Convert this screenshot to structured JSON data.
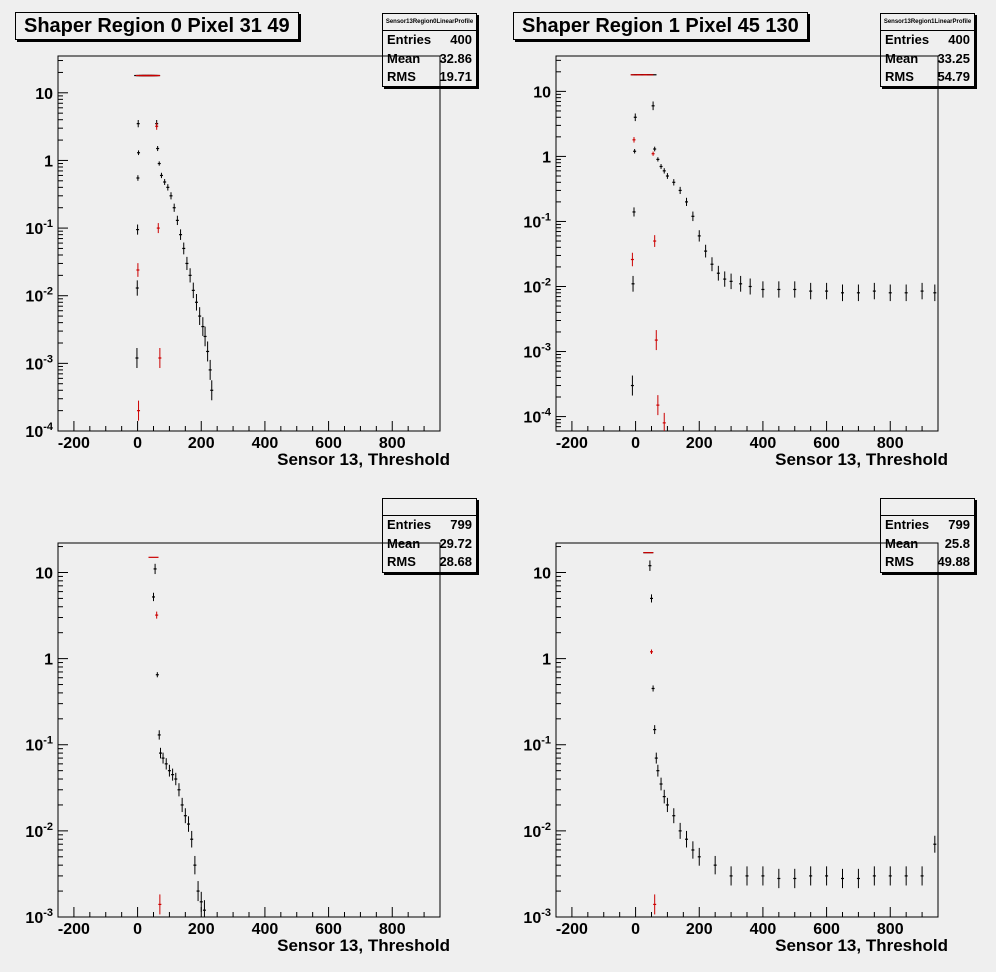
{
  "panels": [
    {
      "title": "Shaper Region 0 Pixel 31 49",
      "stats_name": "Sensor13Region0LinearProfile",
      "entries_label": "Entries",
      "entries": "400",
      "mean_label": "Mean",
      "mean": "32.86",
      "rms_label": "RMS",
      "rms": "19.71",
      "xlabel": "Sensor 13, Threshold"
    },
    {
      "title": "Shaper Region 1 Pixel 45 130",
      "stats_name": "Sensor13Region1LinearProfile",
      "entries_label": "Entries",
      "entries": "400",
      "mean_label": "Mean",
      "mean": "33.25",
      "rms_label": "RMS",
      "rms": "54.79",
      "xlabel": "Sensor 13, Threshold"
    },
    {
      "title": "",
      "stats_name": "",
      "entries_label": "Entries",
      "entries": "799",
      "mean_label": "Mean",
      "mean": "29.72",
      "rms_label": "RMS",
      "rms": "28.68",
      "xlabel": "Sensor 13, Threshold"
    },
    {
      "title": "",
      "stats_name": "",
      "entries_label": "Entries",
      "entries": "799",
      "mean_label": "Mean",
      "mean": "25.8",
      "rms_label": "RMS",
      "rms": "49.88",
      "xlabel": "Sensor 13, Threshold"
    }
  ],
  "chart_data": [
    {
      "type": "scatter",
      "title": "Shaper Region 0 Pixel 31 49",
      "xlabel": "Sensor 13, Threshold",
      "ylabel": "",
      "xlim": [
        -250,
        950
      ],
      "ylim": [
        0.0001,
        35
      ],
      "yscale": "log",
      "x_ticks": [
        "-200",
        "0",
        "200",
        "400",
        "600",
        "800"
      ],
      "y_ticks": [
        "10^-4",
        "10^-3",
        "10^-2",
        "10^-1",
        "1",
        "10"
      ],
      "colors": {
        "black": "#000000",
        "red": "#cc0000"
      },
      "series": [
        {
          "color": "black",
          "points": [
            [
              -2,
              0.0012
            ],
            [
              -1,
              0.013
            ],
            [
              0,
              0.095
            ],
            [
              1,
              0.55
            ],
            [
              2,
              3.5
            ],
            [
              3,
              1.3
            ],
            [
              5,
              18
            ],
            [
              10,
              18
            ],
            [
              15,
              18
            ],
            [
              20,
              18
            ],
            [
              25,
              18
            ],
            [
              30,
              18
            ],
            [
              35,
              18
            ],
            [
              40,
              18
            ],
            [
              45,
              18
            ],
            [
              50,
              18
            ],
            [
              55,
              18
            ],
            [
              60,
              3.5
            ],
            [
              63,
              1.5
            ],
            [
              68,
              0.9
            ],
            [
              75,
              0.6
            ],
            [
              85,
              0.48
            ],
            [
              95,
              0.4
            ],
            [
              105,
              0.3
            ],
            [
              115,
              0.2
            ],
            [
              125,
              0.13
            ],
            [
              135,
              0.08
            ],
            [
              145,
              0.05
            ],
            [
              155,
              0.03
            ],
            [
              165,
              0.02
            ],
            [
              175,
              0.012
            ],
            [
              185,
              0.008
            ],
            [
              195,
              0.005
            ],
            [
              205,
              0.0035
            ],
            [
              212,
              0.0025
            ],
            [
              220,
              0.0015
            ],
            [
              228,
              0.0008
            ],
            [
              233,
              0.0004
            ]
          ]
        },
        {
          "color": "red",
          "points": [
            [
              1,
              0.024
            ],
            [
              3,
              0.0002
            ],
            [
              10,
              18
            ],
            [
              20,
              18
            ],
            [
              30,
              18
            ],
            [
              40,
              18
            ],
            [
              50,
              18
            ],
            [
              55,
              18
            ],
            [
              60,
              3.2
            ],
            [
              65,
              0.1
            ],
            [
              70,
              0.0012
            ]
          ]
        }
      ],
      "legend": "none"
    },
    {
      "type": "scatter",
      "title": "Shaper Region 1 Pixel 45 130",
      "xlabel": "Sensor 13, Threshold",
      "ylabel": "",
      "xlim": [
        -250,
        950
      ],
      "ylim": [
        6e-05,
        35
      ],
      "yscale": "log",
      "x_ticks": [
        "-200",
        "0",
        "200",
        "400",
        "600",
        "800"
      ],
      "y_ticks": [
        "10^-4",
        "10^-3",
        "10^-2",
        "10^-1",
        "1",
        "10"
      ],
      "series": [
        {
          "color": "black",
          "points": [
            [
              -10,
              0.0003
            ],
            [
              -8,
              0.011
            ],
            [
              -5,
              0.14
            ],
            [
              -3,
              1.2
            ],
            [
              -1,
              4
            ],
            [
              2,
              18
            ],
            [
              10,
              18
            ],
            [
              20,
              18
            ],
            [
              30,
              18
            ],
            [
              40,
              18
            ],
            [
              50,
              18
            ],
            [
              55,
              6
            ],
            [
              60,
              1.3
            ],
            [
              70,
              0.9
            ],
            [
              80,
              0.7
            ],
            [
              90,
              0.6
            ],
            [
              100,
              0.5
            ],
            [
              120,
              0.4
            ],
            [
              140,
              0.3
            ],
            [
              160,
              0.2
            ],
            [
              180,
              0.12
            ],
            [
              200,
              0.06
            ],
            [
              220,
              0.035
            ],
            [
              240,
              0.022
            ],
            [
              260,
              0.016
            ],
            [
              280,
              0.013
            ],
            [
              300,
              0.012
            ],
            [
              330,
              0.011
            ],
            [
              360,
              0.01
            ],
            [
              400,
              0.009
            ],
            [
              450,
              0.009
            ],
            [
              500,
              0.009
            ],
            [
              550,
              0.0085
            ],
            [
              600,
              0.0085
            ],
            [
              650,
              0.008
            ],
            [
              700,
              0.008
            ],
            [
              750,
              0.0085
            ],
            [
              800,
              0.008
            ],
            [
              850,
              0.008
            ],
            [
              900,
              0.0085
            ],
            [
              940,
              0.008
            ]
          ]
        },
        {
          "color": "red",
          "points": [
            [
              -10,
              0.026
            ],
            [
              -5,
              1.8
            ],
            [
              0,
              18
            ],
            [
              20,
              18
            ],
            [
              40,
              18
            ],
            [
              55,
              1.1
            ],
            [
              60,
              0.05
            ],
            [
              65,
              0.0015
            ],
            [
              70,
              0.00015
            ],
            [
              90,
              8e-05
            ]
          ]
        }
      ],
      "legend": "none"
    },
    {
      "type": "scatter",
      "title": "",
      "xlabel": "Sensor 13, Threshold",
      "ylabel": "",
      "xlim": [
        -250,
        950
      ],
      "ylim": [
        0.001,
        22
      ],
      "yscale": "log",
      "x_ticks": [
        "-200",
        "0",
        "200",
        "400",
        "600",
        "800"
      ],
      "y_ticks": [
        "10^-3",
        "10^-2",
        "10^-1",
        "1",
        "10"
      ],
      "series": [
        {
          "color": "black",
          "points": [
            [
              50,
              5.2
            ],
            [
              55,
              11
            ],
            [
              62,
              0.65
            ],
            [
              68,
              0.13
            ],
            [
              72,
              0.08
            ],
            [
              80,
              0.07
            ],
            [
              90,
              0.06
            ],
            [
              100,
              0.05
            ],
            [
              110,
              0.045
            ],
            [
              120,
              0.04
            ],
            [
              130,
              0.03
            ],
            [
              140,
              0.02
            ],
            [
              150,
              0.015
            ],
            [
              160,
              0.012
            ],
            [
              170,
              0.008
            ],
            [
              180,
              0.004
            ],
            [
              190,
              0.002
            ],
            [
              200,
              0.0015
            ],
            [
              210,
              0.0012
            ]
          ]
        },
        {
          "color": "red",
          "points": [
            [
              50,
              15
            ],
            [
              60,
              3.2
            ],
            [
              70,
              0.0014
            ]
          ]
        }
      ],
      "legend": "none"
    },
    {
      "type": "scatter",
      "title": "",
      "xlabel": "Sensor 13, Threshold",
      "ylabel": "",
      "xlim": [
        -250,
        950
      ],
      "ylim": [
        0.001,
        22
      ],
      "yscale": "log",
      "x_ticks": [
        "-200",
        "0",
        "200",
        "400",
        "600",
        "800"
      ],
      "y_ticks": [
        "10^-3",
        "10^-2",
        "10^-1",
        "1",
        "10"
      ],
      "series": [
        {
          "color": "black",
          "points": [
            [
              40,
              17
            ],
            [
              45,
              12
            ],
            [
              50,
              5
            ],
            [
              55,
              0.45
            ],
            [
              60,
              0.15
            ],
            [
              65,
              0.07
            ],
            [
              70,
              0.05
            ],
            [
              80,
              0.035
            ],
            [
              90,
              0.025
            ],
            [
              100,
              0.02
            ],
            [
              120,
              0.015
            ],
            [
              140,
              0.01
            ],
            [
              160,
              0.008
            ],
            [
              180,
              0.006
            ],
            [
              200,
              0.005
            ],
            [
              250,
              0.004
            ],
            [
              300,
              0.003
            ],
            [
              350,
              0.003
            ],
            [
              400,
              0.003
            ],
            [
              450,
              0.0028
            ],
            [
              500,
              0.0028
            ],
            [
              550,
              0.003
            ],
            [
              600,
              0.003
            ],
            [
              650,
              0.0028
            ],
            [
              700,
              0.0028
            ],
            [
              750,
              0.003
            ],
            [
              800,
              0.003
            ],
            [
              850,
              0.003
            ],
            [
              900,
              0.003
            ],
            [
              940,
              0.007
            ]
          ]
        },
        {
          "color": "red",
          "points": [
            [
              40,
              17
            ],
            [
              50,
              1.2
            ],
            [
              60,
              0.0014
            ]
          ]
        }
      ],
      "legend": "none"
    }
  ]
}
